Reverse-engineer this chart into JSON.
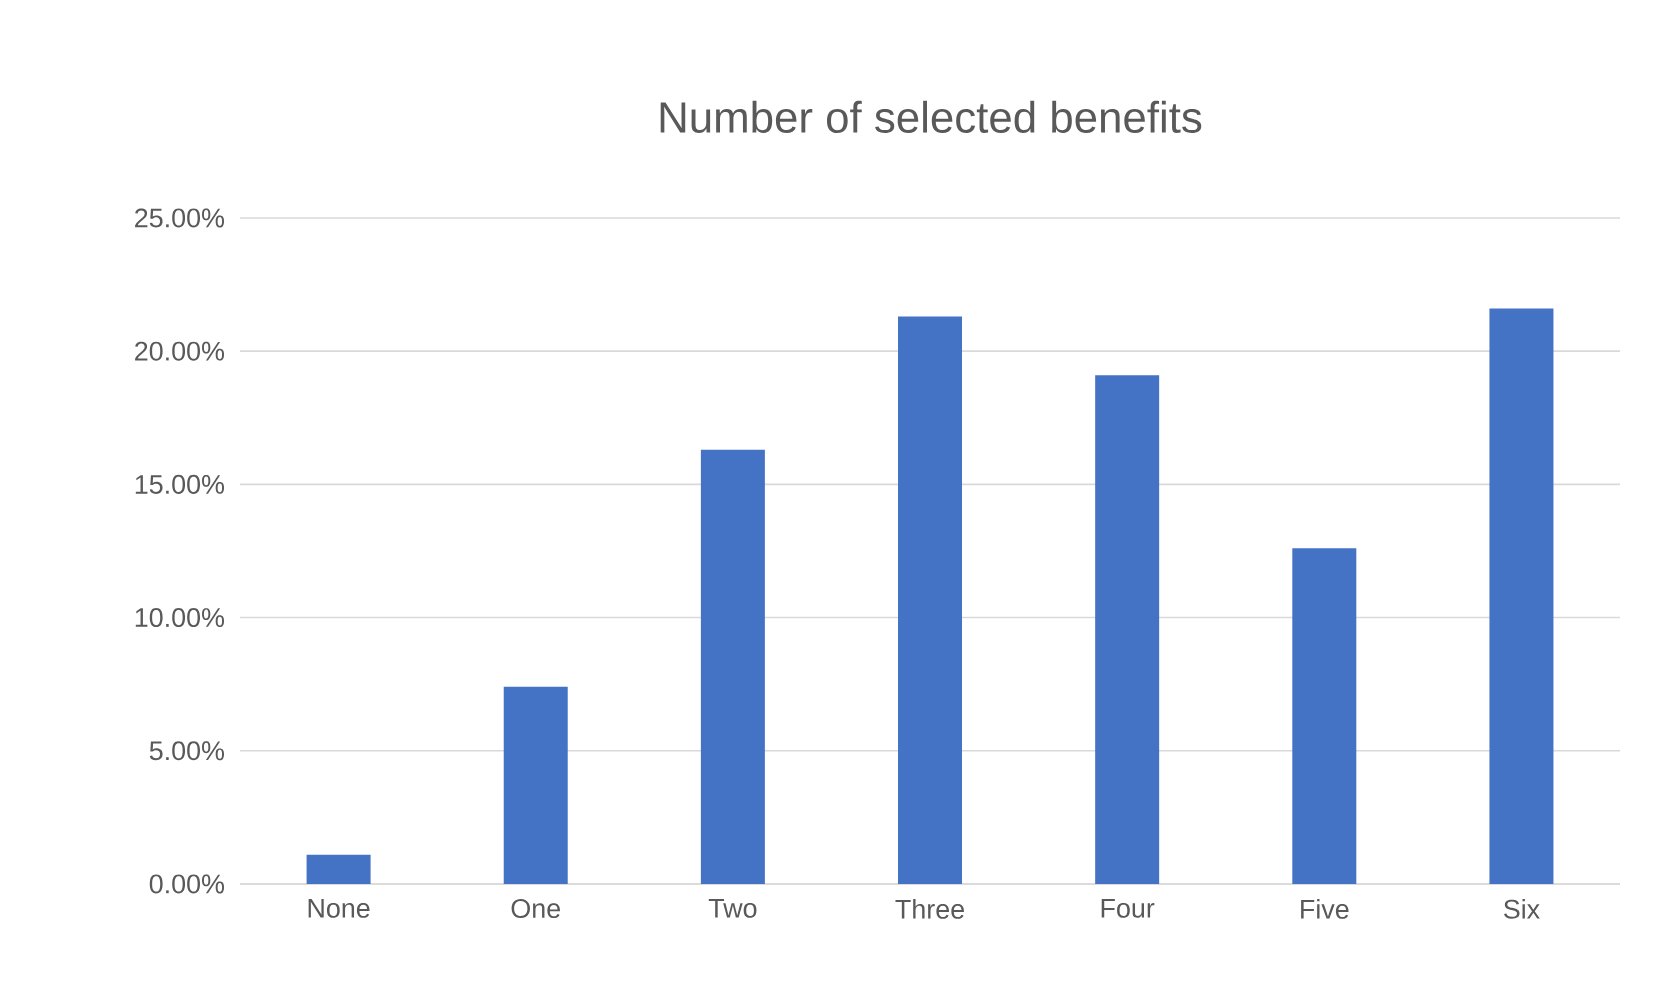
{
  "chart_data": {
    "type": "bar",
    "title": "Number of selected benefits",
    "categories": [
      "None",
      "One",
      "Two",
      "Three",
      "Four",
      "Five",
      "Six"
    ],
    "values": [
      1.1,
      7.4,
      16.3,
      21.3,
      19.1,
      12.6,
      21.6
    ],
    "color": "#4472c4",
    "ylim": [
      0,
      25
    ],
    "yticks": [
      {
        "value": 0,
        "label": "0.00%"
      },
      {
        "value": 5,
        "label": "5.00%"
      },
      {
        "value": 10,
        "label": "10.00%"
      },
      {
        "value": 15,
        "label": "15.00%"
      },
      {
        "value": 20,
        "label": "20.00%"
      },
      {
        "value": 25,
        "label": "25.00%"
      }
    ],
    "grid": "y"
  }
}
